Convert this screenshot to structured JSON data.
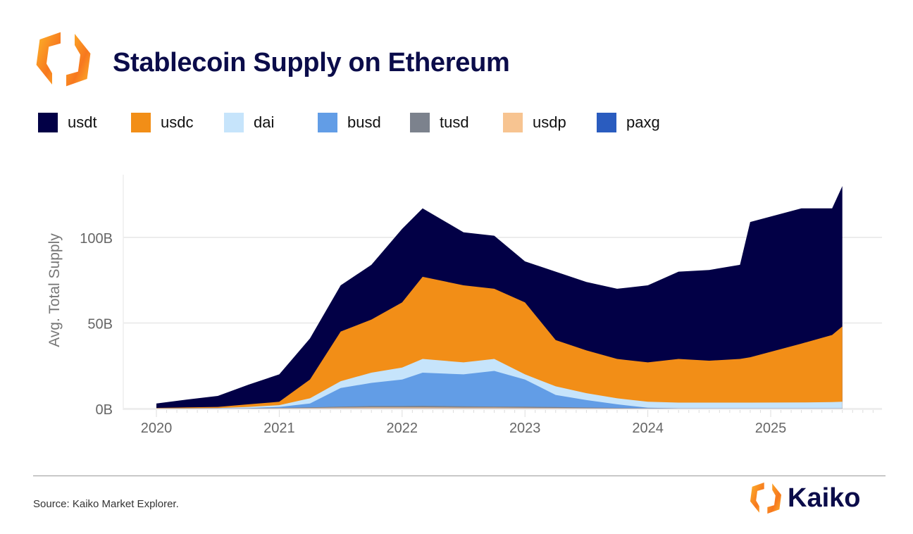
{
  "header": {
    "title": "Stablecoin Supply on Ethereum",
    "logo": "kaiko-hexagon-logo"
  },
  "footer": {
    "source": "Source: Kaiko Market Explorer.",
    "brand": "Kaiko"
  },
  "chart_data": {
    "type": "area",
    "stacked": true,
    "title": "Stablecoin Supply on Ethereum",
    "xlabel": "",
    "ylabel": "Avg. Total Supply",
    "ylim": [
      0,
      135
    ],
    "y_unit": "B",
    "yticks": [
      {
        "value": 0,
        "label": "0B"
      },
      {
        "value": 50,
        "label": "50B"
      },
      {
        "value": 100,
        "label": "100B"
      }
    ],
    "xticks": [
      "2020",
      "2021",
      "2022",
      "2023",
      "2024",
      "2025"
    ],
    "grid": "horizontal",
    "legend": "top",
    "x": [
      "2020-01",
      "2020-04",
      "2020-07",
      "2020-10",
      "2021-01",
      "2021-04",
      "2021-07",
      "2021-10",
      "2022-01",
      "2022-03",
      "2022-07",
      "2022-10",
      "2023-01",
      "2023-04",
      "2023-07",
      "2023-10",
      "2024-01",
      "2024-04",
      "2024-07",
      "2024-10",
      "2024-11",
      "2025-04",
      "2025-07",
      "2025-08"
    ],
    "series": [
      {
        "name": "usdt",
        "color": "#020046",
        "values": [
          2.6,
          4.6,
          6.4,
          11.5,
          16,
          24,
          27,
          32,
          43,
          40,
          31,
          31,
          24,
          40,
          40,
          41,
          45,
          51,
          53,
          55,
          79,
          79,
          74,
          82
        ]
      },
      {
        "name": "usdc",
        "color": "#f28e17",
        "values": [
          0.2,
          0.5,
          0.7,
          1.5,
          2,
          11,
          29,
          31,
          38,
          48,
          45,
          41,
          42,
          27,
          25,
          23,
          23,
          25.5,
          24.5,
          25.5,
          26.5,
          34.4,
          39.2,
          44
        ]
      },
      {
        "name": "dai",
        "color": "#c6e4fb",
        "values": [
          0.1,
          0.1,
          0.2,
          0.7,
          1,
          3,
          4,
          6,
          7,
          8,
          7,
          7,
          3,
          5,
          4,
          3.5,
          3.5,
          3.3,
          3.3,
          3.3,
          3.3,
          3.4,
          3.6,
          3.8
        ]
      },
      {
        "name": "busd",
        "color": "#629de6",
        "values": [
          0,
          0,
          0,
          0.1,
          0.6,
          2.3,
          10.8,
          13.5,
          15.5,
          19.4,
          18.7,
          20.8,
          15.9,
          7.1,
          4.4,
          2.1,
          0.2,
          0,
          0,
          0,
          0,
          0,
          0,
          0
        ]
      },
      {
        "name": "tusd",
        "color": "#7c828d",
        "values": [
          0,
          0,
          0,
          0,
          0.1,
          0.3,
          0.6,
          0.8,
          0.8,
          0.9,
          0.7,
          0.6,
          0.6,
          0.5,
          0.3,
          0.2,
          0.1,
          0,
          0,
          0,
          0,
          0,
          0,
          0
        ]
      },
      {
        "name": "usdp",
        "color": "#f7c491",
        "values": [
          0,
          0,
          0,
          0.1,
          0.2,
          0.3,
          0.5,
          0.6,
          0.6,
          0.6,
          0.5,
          0.5,
          0.4,
          0.3,
          0.2,
          0.1,
          0.1,
          0.1,
          0.1,
          0.1,
          0.1,
          0.1,
          0.1,
          0.1
        ]
      },
      {
        "name": "paxg",
        "color": "#2a5cbf",
        "values": [
          0.1,
          0.1,
          0.1,
          0.1,
          0.1,
          0.1,
          0.1,
          0.1,
          0.1,
          0.1,
          0.1,
          0.1,
          0.1,
          0.1,
          0.1,
          0.1,
          0.1,
          0.1,
          0.1,
          0.1,
          0.1,
          0.1,
          0.1,
          0.1
        ]
      }
    ]
  }
}
